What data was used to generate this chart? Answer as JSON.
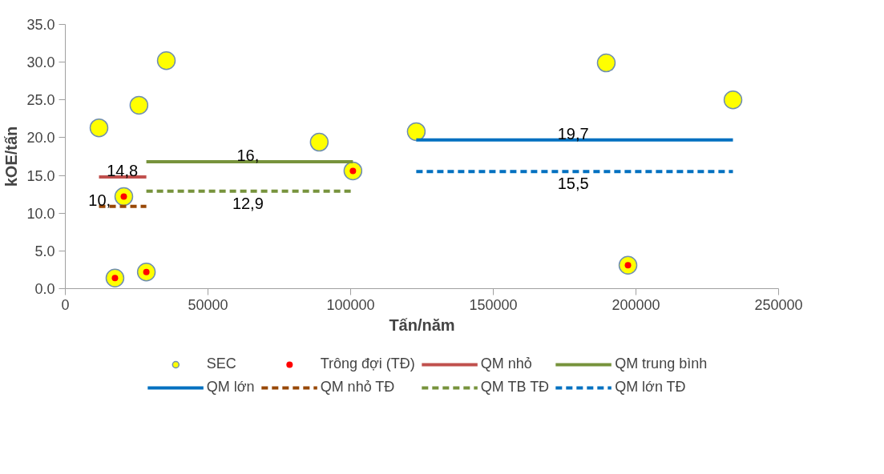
{
  "chart_data": {
    "type": "scatter",
    "xlabel": "Tấn/năm",
    "ylabel": "kOE/tấn",
    "xlim": [
      0,
      250000
    ],
    "xticks": [
      0,
      50000,
      100000,
      150000,
      200000,
      250000
    ],
    "ylim": [
      0,
      35
    ],
    "yticks": [
      {
        "value": 0,
        "label": "0.0"
      },
      {
        "value": 5,
        "label": "5.0"
      },
      {
        "value": 10,
        "label": "10.0"
      },
      {
        "value": 15,
        "label": "15.0"
      },
      {
        "value": 20,
        "label": "20.0"
      },
      {
        "value": 25,
        "label": "25.0"
      },
      {
        "value": 30,
        "label": "30.0"
      },
      {
        "value": 35,
        "label": "35.0"
      }
    ],
    "grid": false,
    "legend": "bottom",
    "annotations": [
      {
        "text": "16,",
        "x": 64000,
        "y": 16.8
      },
      {
        "text": "10,",
        "x": 12000,
        "y": 10.9
      }
    ],
    "series": [
      {
        "name": "SEC",
        "type": "scatter",
        "marker": "circle",
        "color": "#ffff00",
        "x": [
          11800,
          17400,
          20500,
          25800,
          28400,
          35400,
          89000,
          100800,
          123000,
          189600,
          197200,
          234000
        ],
        "values": [
          21.3,
          1.4,
          12.2,
          24.3,
          2.2,
          30.2,
          19.4,
          15.6,
          20.8,
          29.9,
          3.1,
          25.0
        ]
      },
      {
        "name": "Trông đợi (TĐ)",
        "type": "scatter",
        "marker": "circle",
        "color": "#ff0000",
        "x": [
          17400,
          20500,
          28400,
          100800,
          197200
        ],
        "values": [
          1.4,
          12.2,
          2.2,
          15.6,
          3.1
        ]
      },
      {
        "name": "QM nhỏ",
        "type": "line",
        "line_style": "solid",
        "color": "#c0504d",
        "x": [
          11800,
          20000,
          28400
        ],
        "values": [
          14.8,
          14.8,
          14.8
        ],
        "value_labels": [
          null,
          "14,8",
          null
        ]
      },
      {
        "name": "QM trung bình",
        "type": "line",
        "line_style": "solid",
        "color": "#77933c",
        "x": [
          28400,
          64000,
          100800
        ],
        "values": [
          16.8,
          16.8,
          16.8
        ]
      },
      {
        "name": "QM lớn",
        "type": "line",
        "line_style": "solid",
        "color": "#0070c0",
        "x": [
          123000,
          178000,
          234000
        ],
        "values": [
          19.7,
          19.7,
          19.7
        ],
        "value_labels": [
          null,
          "19,7",
          null
        ]
      },
      {
        "name": "QM nhỏ TĐ",
        "type": "line",
        "line_style": "dashed",
        "color": "#984807",
        "x": [
          11800,
          20000,
          28400
        ],
        "values": [
          10.9,
          10.9,
          10.9
        ]
      },
      {
        "name": "QM TB TĐ",
        "type": "line",
        "line_style": "dashed",
        "color": "#77933c",
        "x": [
          28400,
          64000,
          100800
        ],
        "values": [
          12.9,
          12.9,
          12.9
        ],
        "value_labels": [
          null,
          "12,9",
          null
        ]
      },
      {
        "name": "QM lớn TĐ",
        "type": "line",
        "line_style": "dashed",
        "color": "#0070c0",
        "x": [
          123000,
          178000,
          234000
        ],
        "values": [
          15.5,
          15.5,
          15.5
        ],
        "value_labels": [
          null,
          "15,5",
          null
        ]
      }
    ]
  }
}
